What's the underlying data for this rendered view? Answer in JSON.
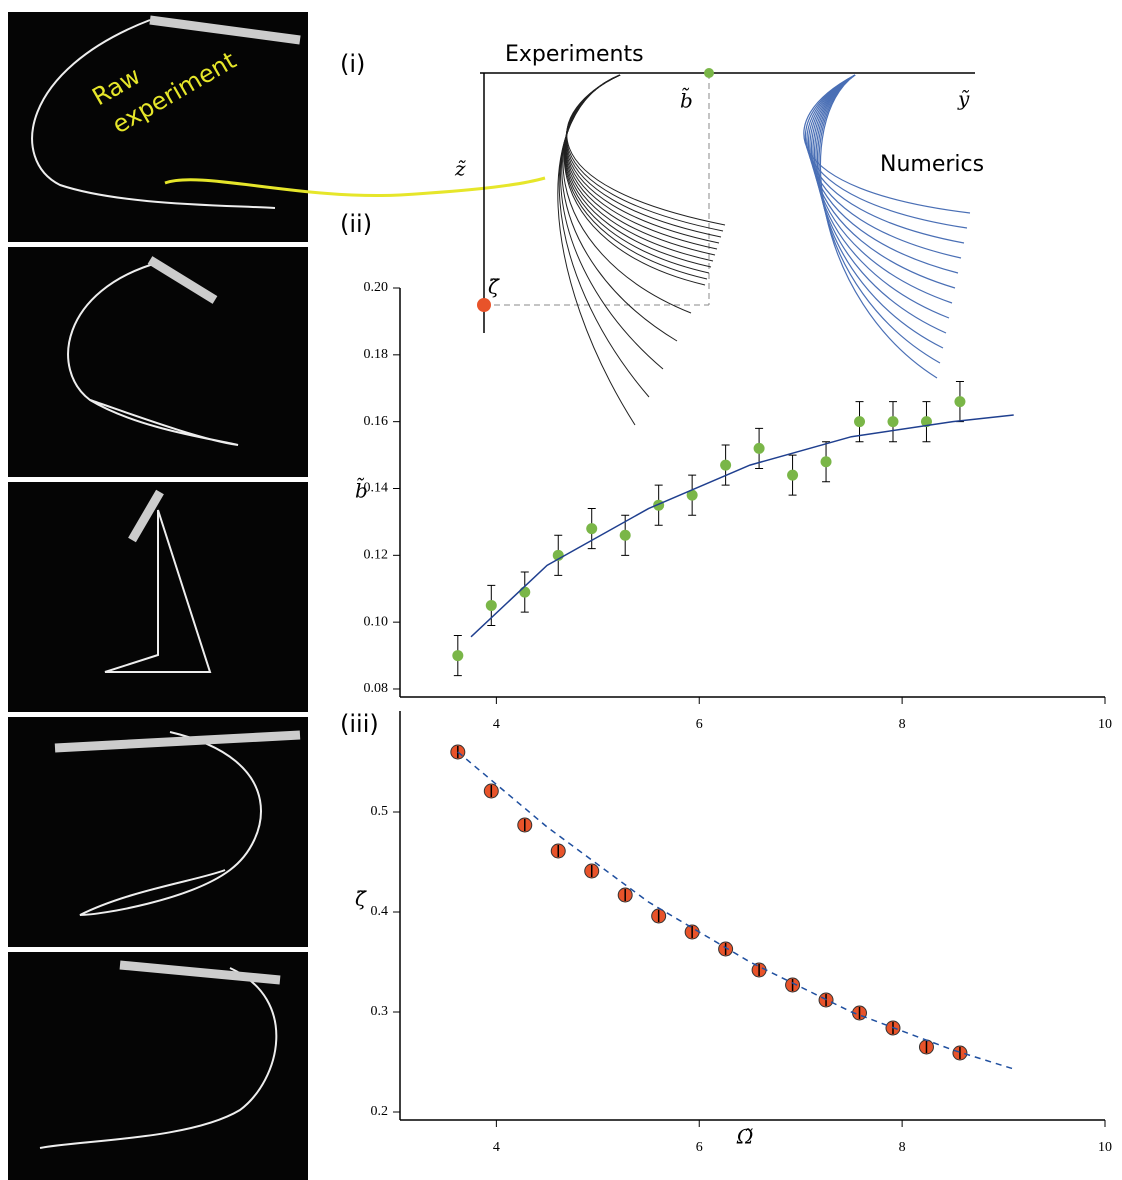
{
  "photos": {
    "label": [
      "Raw",
      "experiment"
    ]
  },
  "schematic": {
    "label": "(i)",
    "experiments": "Experiments",
    "numerics": "Numerics",
    "y_axis": "ỹ",
    "z_axis": "z̃",
    "b_marker": "b̃",
    "zeta_marker": "ζ̃"
  },
  "chart_data": [
    {
      "type": "scatter",
      "label": "(ii)",
      "y_label": "b̃",
      "xlim": [
        3.05,
        10
      ],
      "xticks": [
        4,
        6,
        8,
        10
      ],
      "ylim": [
        0.0776,
        0.2
      ],
      "yticks": [
        0.08,
        {
          "value": 0.1,
          "label": "0.10"
        },
        0.12,
        0.14,
        0.16,
        0.18,
        {
          "value": 0.2,
          "label": "0.20"
        }
      ],
      "series": [
        {
          "color": "#7ab648",
          "x": [
            3.62,
            3.95,
            4.28,
            4.61,
            4.94,
            5.27,
            5.6,
            5.93,
            6.26,
            6.59,
            6.92,
            7.25,
            7.58,
            7.91,
            8.24,
            8.57
          ],
          "values": [
            0.09,
            0.105,
            0.109,
            0.12,
            0.128,
            0.126,
            0.135,
            0.138,
            0.147,
            0.152,
            0.144,
            0.148,
            0.16,
            0.16,
            0.16,
            0.166
          ],
          "errors": [
            0.006,
            0.006,
            0.006,
            0.006,
            0.006,
            0.006,
            0.006,
            0.006,
            0.006,
            0.006,
            0.006,
            0.006,
            0.006,
            0.006,
            0.006,
            0.006
          ]
        },
        {
          "color": "#1f3f8f",
          "style": "solid",
          "x": [
            3.75,
            4.5,
            5.5,
            6.5,
            7.5,
            8.5,
            9.1
          ],
          "values": [
            0.0956,
            0.117,
            0.134,
            0.147,
            0.1555,
            0.16,
            0.162
          ]
        }
      ]
    },
    {
      "type": "scatter",
      "label": "(iii)",
      "y_label": "ζ̃",
      "x_label": "Ω̃",
      "xlim": [
        3.05,
        10
      ],
      "xticks": [
        4,
        6,
        8,
        10
      ],
      "ylim": [
        0.192,
        0.601
      ],
      "yticks": [
        0.2,
        0.3,
        0.4,
        0.5
      ],
      "series": [
        {
          "color": "#e8532a",
          "x": [
            3.62,
            3.95,
            4.28,
            4.61,
            4.94,
            5.27,
            5.6,
            5.93,
            6.26,
            6.59,
            6.92,
            7.25,
            7.58,
            7.91,
            8.24,
            8.57
          ],
          "values": [
            0.56,
            0.521,
            0.487,
            0.461,
            0.441,
            0.417,
            0.396,
            0.38,
            0.363,
            0.342,
            0.327,
            0.312,
            0.299,
            0.284,
            0.265,
            0.259
          ],
          "errors": [
            0.006,
            0.006,
            0.006,
            0.006,
            0.006,
            0.006,
            0.006,
            0.006,
            0.006,
            0.006,
            0.006,
            0.006,
            0.006,
            0.006,
            0.006,
            0.006
          ]
        },
        {
          "color": "#1f4f9f",
          "style": "dashed",
          "x": [
            3.62,
            4.5,
            5.5,
            6.5,
            7.5,
            8.5,
            9.1
          ],
          "values": [
            0.56,
            0.485,
            0.41,
            0.35,
            0.3,
            0.262,
            0.243
          ]
        }
      ]
    }
  ]
}
